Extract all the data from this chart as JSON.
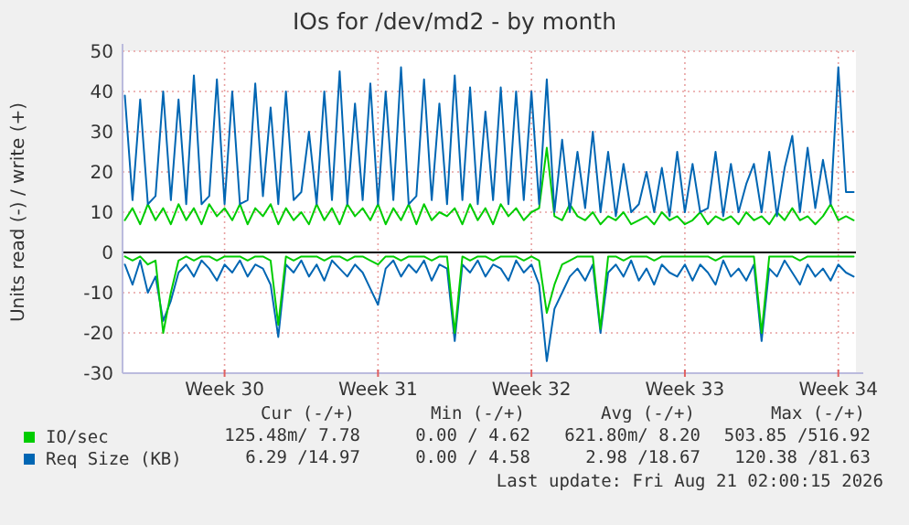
{
  "chart_data": {
    "type": "line",
    "title": "IOs for /dev/md2 - by month",
    "ylabel": "Units read (-) / write (+)",
    "categories": [
      null,
      null,
      null,
      null,
      null,
      null,
      null,
      null,
      null,
      null,
      null,
      null,
      null,
      "Week 30",
      null,
      null,
      null,
      null,
      null,
      null,
      null,
      null,
      null,
      null,
      null,
      null,
      null,
      null,
      null,
      null,
      null,
      null,
      null,
      "Week 31",
      null,
      null,
      null,
      null,
      null,
      null,
      null,
      null,
      null,
      null,
      null,
      null,
      null,
      null,
      null,
      null,
      null,
      null,
      null,
      "Week 32",
      null,
      null,
      null,
      null,
      null,
      null,
      null,
      null,
      null,
      null,
      null,
      null,
      null,
      null,
      null,
      null,
      null,
      null,
      null,
      "Week 33",
      null,
      null,
      null,
      null,
      null,
      null,
      null,
      null,
      null,
      null,
      null,
      null,
      null,
      null,
      null,
      null,
      null,
      null,
      null,
      "Week 34",
      null,
      null
    ],
    "series": [
      {
        "name": "IO/sec",
        "color": "#00cc00",
        "values": [
          8,
          11,
          7,
          12,
          8,
          11,
          7,
          12,
          8,
          11,
          7,
          12,
          9,
          11,
          8,
          12,
          7,
          11,
          9,
          12,
          7,
          11,
          8,
          10,
          7,
          12,
          8,
          11,
          7,
          12,
          9,
          11,
          8,
          12,
          7,
          11,
          8,
          12,
          7,
          12,
          8,
          10,
          9,
          11,
          7,
          12,
          8,
          11,
          7,
          12,
          9,
          11,
          8,
          10,
          11,
          26,
          9,
          8,
          12,
          9,
          8,
          10,
          7,
          9,
          8,
          10,
          7,
          8,
          9,
          7,
          10,
          8,
          9,
          7,
          8,
          10,
          7,
          9,
          8,
          9,
          7,
          10,
          8,
          9,
          7,
          10,
          8,
          11,
          8,
          9,
          7,
          9,
          12,
          8,
          9,
          8
        ]
      },
      {
        "name": "Req Size (KB)",
        "color": "#0066b3",
        "values": [
          39,
          13,
          38,
          12,
          14,
          40,
          13,
          38,
          12,
          44,
          12,
          14,
          43,
          12,
          40,
          12,
          13,
          42,
          14,
          36,
          12,
          40,
          13,
          15,
          30,
          12,
          40,
          13,
          45,
          12,
          37,
          13,
          42,
          12,
          40,
          13,
          46,
          12,
          14,
          43,
          13,
          37,
          12,
          44,
          13,
          41,
          12,
          35,
          13,
          41,
          12,
          40,
          13,
          40,
          12,
          43,
          10,
          28,
          10,
          25,
          11,
          30,
          10,
          25,
          9,
          22,
          10,
          12,
          20,
          10,
          21,
          9,
          25,
          10,
          22,
          10,
          11,
          25,
          9,
          22,
          10,
          17,
          22,
          10,
          25,
          9,
          21,
          29,
          10,
          26,
          11,
          23,
          12,
          46,
          15,
          15
        ]
      },
      {
        "color": "#0066b3",
        "values": [
          -3,
          -8,
          -2,
          -10,
          -6,
          -17,
          -12,
          -5,
          -3,
          -6,
          -2,
          -4,
          -7,
          -3,
          -5,
          -2,
          -6,
          -3,
          -4,
          -8,
          -21,
          -3,
          -5,
          -2,
          -6,
          -3,
          -7,
          -2,
          -4,
          -6,
          -3,
          -5,
          -9,
          -13,
          -4,
          -2,
          -6,
          -3,
          -5,
          -2,
          -7,
          -3,
          -4,
          -22,
          -3,
          -5,
          -2,
          -6,
          -3,
          -4,
          -7,
          -2,
          -5,
          -3,
          -8,
          -27,
          -14,
          -10,
          -6,
          -4,
          -7,
          -3,
          -20,
          -5,
          -3,
          -6,
          -2,
          -7,
          -4,
          -8,
          -3,
          -5,
          -6,
          -3,
          -7,
          -3,
          -5,
          -8,
          -2,
          -6,
          -4,
          -7,
          -3,
          -22,
          -4,
          -6,
          -2,
          -5,
          -8,
          -3,
          -6,
          -4,
          -7,
          -3,
          -5,
          -6
        ]
      },
      {
        "color": "#00cc00",
        "values": [
          -1,
          -2,
          -1,
          -3,
          -2,
          -20,
          -10,
          -2,
          -1,
          -2,
          -1,
          -1,
          -2,
          -1,
          -1,
          -1,
          -2,
          -1,
          -1,
          -2,
          -18,
          -1,
          -2,
          -1,
          -1,
          -1,
          -2,
          -1,
          -1,
          -2,
          -1,
          -1,
          -2,
          -3,
          -1,
          -1,
          -2,
          -1,
          -1,
          -1,
          -2,
          -1,
          -1,
          -20,
          -1,
          -2,
          -1,
          -1,
          -2,
          -1,
          -1,
          -1,
          -2,
          -1,
          -2,
          -15,
          -8,
          -3,
          -2,
          -1,
          -1,
          -1,
          -19,
          -1,
          -1,
          -2,
          -1,
          -1,
          -1,
          -2,
          -1,
          -1,
          -1,
          -1,
          -1,
          -1,
          -1,
          -2,
          -1,
          -1,
          -1,
          -1,
          -1,
          -20,
          -1,
          -1,
          -1,
          -1,
          -2,
          -1,
          -1,
          -1,
          -1,
          -1,
          -1,
          -1
        ]
      }
    ],
    "ylim": [
      -30,
      50
    ],
    "yticks": [
      -30,
      -20,
      -10,
      0,
      10,
      20,
      30,
      40,
      50
    ],
    "ref_lines": [
      {
        "axis": "y",
        "value": 0,
        "color": "#000000"
      }
    ],
    "grid": true,
    "legend": "bottom",
    "annotations": [
      "Cur (-/+)",
      "Min (-/+)",
      "Avg (-/+)",
      "Max (-/+)",
      "125.48m/ 7.78",
      "0.00 / 4.62",
      "621.80m/ 8.20",
      "503.85 /516.92",
      "6.29 /14.97",
      "0.00 / 4.58",
      "2.98 /18.67",
      "120.38 /81.63",
      "Last update: Fri Aug 21 02:00:15 2026"
    ]
  }
}
